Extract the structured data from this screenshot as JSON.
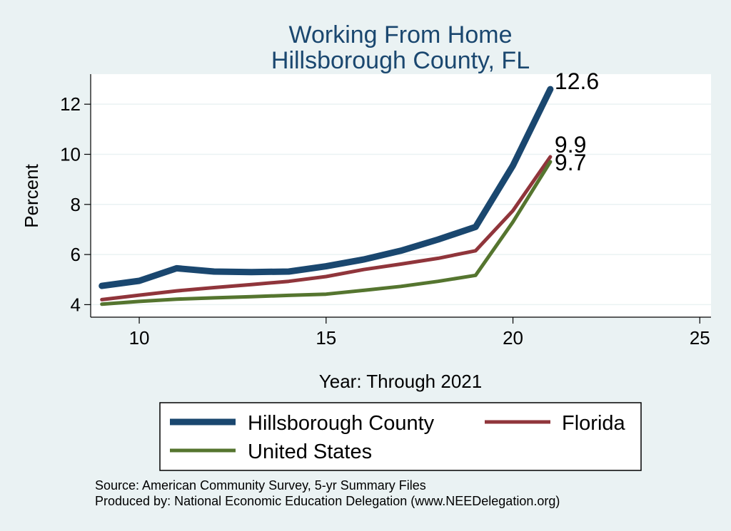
{
  "chart_data": {
    "type": "line",
    "title": [
      "Working From Home",
      "Hillsborough County, FL"
    ],
    "xlabel": "Year: Through 2021",
    "ylabel": "Percent",
    "xlim": [
      8.7,
      25.3
    ],
    "ylim": [
      3.5,
      13.2
    ],
    "xticks": [
      10,
      15,
      20,
      25
    ],
    "yticks": [
      4,
      6,
      8,
      10,
      12
    ],
    "grid": true,
    "legend_position": "bottom",
    "x": [
      9,
      10,
      11,
      12,
      13,
      14,
      15,
      16,
      17,
      18,
      19,
      20,
      21
    ],
    "series": [
      {
        "name": "Hillsborough County",
        "color": "#1a476f",
        "stroke": "thick",
        "values": [
          4.75,
          4.95,
          5.45,
          5.32,
          5.3,
          5.32,
          5.53,
          5.8,
          6.15,
          6.6,
          7.1,
          9.55,
          12.6
        ],
        "end_label": "12.6"
      },
      {
        "name": "Florida",
        "color": "#90353b",
        "stroke": "medium",
        "values": [
          4.2,
          4.38,
          4.55,
          4.68,
          4.8,
          4.93,
          5.12,
          5.4,
          5.62,
          5.85,
          6.15,
          7.75,
          9.9
        ],
        "end_label": "9.9"
      },
      {
        "name": "United States",
        "color": "#55752f",
        "stroke": "medium",
        "values": [
          4.02,
          4.13,
          4.22,
          4.27,
          4.32,
          4.37,
          4.42,
          4.57,
          4.73,
          4.93,
          5.17,
          7.3,
          9.7
        ],
        "end_label": "9.7"
      }
    ],
    "notes": [
      "Source: American Community Survey, 5-yr Summary Files",
      "Produced by: National Economic Education Delegation (www.NEEDelegation.org)"
    ]
  }
}
